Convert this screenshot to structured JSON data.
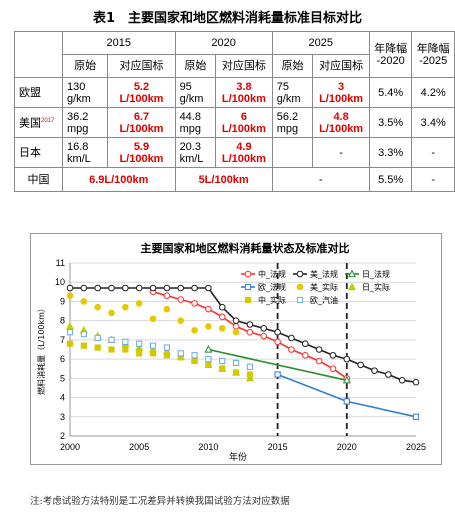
{
  "title": "表1　主要国家和地区燃料消耗量标准目标对比",
  "table": {
    "years": [
      "2015",
      "2020",
      "2025"
    ],
    "rate_headers": [
      "年降幅\n-2020",
      "年降幅\n-2025"
    ],
    "sub_headers": [
      "原始",
      "对应国标",
      "原始",
      "对应国标",
      "原始",
      "对应国标"
    ],
    "rows": [
      {
        "name": "欧盟",
        "sup": "",
        "cells": [
          [
            "130\ng/km",
            "5.2\nL/100km",
            "95\ng/km",
            "3.8\nL/100km",
            "75\ng/km",
            "3\nL/100km"
          ]
        ],
        "rates": [
          "5.4%",
          "4.2%"
        ]
      },
      {
        "name": "美国",
        "sup": "2017",
        "cells": [
          [
            "36.2\nmpg",
            "6.7\nL/100km",
            "44.8\nmpg",
            "6\nL/100km",
            "56.2\nmpg",
            "4.8\nL/100km"
          ]
        ],
        "rates": [
          "3.5%",
          "3.4%"
        ]
      },
      {
        "name": "日本",
        "sup": "",
        "cells": [
          [
            "16.8\nkm/L",
            "5.9\nL/100km",
            "20.3\nkm/L",
            "4.9\nL/100km",
            "",
            "-"
          ]
        ],
        "rates": [
          "3.3%",
          "-"
        ]
      },
      {
        "name": "中国",
        "sup": "",
        "merged": [
          "6.9L/100km",
          "5L/100km",
          "-"
        ],
        "rates": [
          "5.5%",
          "-"
        ]
      }
    ]
  },
  "chart_data": {
    "type": "line",
    "title": "主要国家和地区燃料消耗量状态及标准对比",
    "xlabel": "年份",
    "ylabel": "燃料消耗量（L/100km）",
    "xlim": [
      2000,
      2025
    ],
    "ylim": [
      2,
      11
    ],
    "xticks": [
      "2000",
      "2005",
      "2010",
      "2015",
      "2020",
      "2025"
    ],
    "yticks": [
      "2",
      "3",
      "4",
      "5",
      "6",
      "7",
      "8",
      "9",
      "10",
      "11"
    ],
    "vlines": [
      2015,
      2020
    ],
    "grid": true,
    "legend_position": "top-right",
    "series": [
      {
        "name": "中_法规",
        "color": "#ff3030",
        "marker": "circle-open",
        "line": true,
        "points": [
          [
            2006,
            9.5
          ],
          [
            2007,
            9.3
          ],
          [
            2008,
            9.1
          ],
          [
            2009,
            8.9
          ],
          [
            2010,
            8.6
          ],
          [
            2011,
            8.2
          ],
          [
            2012,
            7.7
          ],
          [
            2013,
            7.4
          ],
          [
            2014,
            7.2
          ],
          [
            2015,
            6.9
          ],
          [
            2016,
            6.5
          ],
          [
            2017,
            6.2
          ],
          [
            2018,
            5.9
          ],
          [
            2019,
            5.5
          ],
          [
            2020,
            5.0
          ]
        ]
      },
      {
        "name": "美_法规",
        "color": "#222222",
        "marker": "circle-open",
        "line": true,
        "points": [
          [
            2000,
            9.7
          ],
          [
            2001,
            9.7
          ],
          [
            2002,
            9.7
          ],
          [
            2003,
            9.7
          ],
          [
            2004,
            9.7
          ],
          [
            2005,
            9.7
          ],
          [
            2006,
            9.7
          ],
          [
            2007,
            9.7
          ],
          [
            2008,
            9.7
          ],
          [
            2009,
            9.7
          ],
          [
            2010,
            9.7
          ],
          [
            2011,
            8.7
          ],
          [
            2012,
            8.0
          ],
          [
            2013,
            7.8
          ],
          [
            2014,
            7.6
          ],
          [
            2015,
            7.4
          ],
          [
            2016,
            7.1
          ],
          [
            2017,
            6.8
          ],
          [
            2018,
            6.5
          ],
          [
            2019,
            6.2
          ],
          [
            2020,
            6.0
          ],
          [
            2021,
            5.7
          ],
          [
            2022,
            5.4
          ],
          [
            2023,
            5.2
          ],
          [
            2024,
            4.9
          ],
          [
            2025,
            4.8
          ]
        ]
      },
      {
        "name": "日_法规",
        "color": "#2e8b2e",
        "marker": "triangle-open",
        "line": true,
        "points": [
          [
            2010,
            6.5
          ],
          [
            2020,
            4.9
          ]
        ]
      },
      {
        "name": "欧_法规",
        "color": "#2f7fcf",
        "marker": "square-open",
        "line": true,
        "points": [
          [
            2015,
            5.2
          ],
          [
            2020,
            3.8
          ],
          [
            2025,
            3.0
          ]
        ]
      },
      {
        "name": "美_实际",
        "color": "#e6c800",
        "marker": "circle-filled",
        "line": false,
        "points": [
          [
            2000,
            9.3
          ],
          [
            2001,
            9.0
          ],
          [
            2002,
            8.7
          ],
          [
            2003,
            8.4
          ],
          [
            2004,
            8.7
          ],
          [
            2005,
            8.9
          ],
          [
            2006,
            8.1
          ],
          [
            2007,
            8.6
          ],
          [
            2008,
            8.0
          ],
          [
            2009,
            7.5
          ],
          [
            2010,
            7.7
          ],
          [
            2011,
            7.6
          ],
          [
            2012,
            7.4
          ]
        ]
      },
      {
        "name": "日_实际",
        "color": "#b8d200",
        "marker": "triangle-filled",
        "line": false,
        "points": [
          [
            2000,
            7.7
          ],
          [
            2001,
            7.5
          ],
          [
            2002,
            7.2
          ],
          [
            2003,
            7.0
          ],
          [
            2004,
            6.8
          ],
          [
            2005,
            6.6
          ],
          [
            2006,
            6.5
          ],
          [
            2007,
            6.4
          ],
          [
            2008,
            6.1
          ],
          [
            2009,
            6.0
          ],
          [
            2010,
            5.7
          ],
          [
            2011,
            5.5
          ],
          [
            2012,
            5.3
          ],
          [
            2013,
            5.0
          ]
        ]
      },
      {
        "name": "中_实际",
        "color": "#d4c800",
        "marker": "square-filled",
        "line": false,
        "points": [
          [
            2000,
            6.8
          ],
          [
            2001,
            6.7
          ],
          [
            2002,
            6.6
          ],
          [
            2003,
            6.5
          ],
          [
            2004,
            6.5
          ],
          [
            2005,
            6.3
          ],
          [
            2006,
            6.3
          ],
          [
            2007,
            6.2
          ],
          [
            2008,
            6.1
          ],
          [
            2009,
            5.9
          ],
          [
            2010,
            5.7
          ],
          [
            2011,
            5.5
          ],
          [
            2012,
            5.3
          ],
          [
            2013,
            5.2
          ]
        ]
      },
      {
        "name": "欧_汽油",
        "color": "#6aa8e6",
        "marker": "square-open",
        "line": false,
        "points": [
          [
            2000,
            7.4
          ],
          [
            2001,
            7.3
          ],
          [
            2002,
            7.1
          ],
          [
            2003,
            7.0
          ],
          [
            2004,
            6.9
          ],
          [
            2005,
            6.8
          ],
          [
            2006,
            6.7
          ],
          [
            2007,
            6.6
          ],
          [
            2008,
            6.3
          ],
          [
            2009,
            6.2
          ],
          [
            2010,
            6.0
          ],
          [
            2011,
            5.9
          ],
          [
            2012,
            5.8
          ],
          [
            2013,
            5.6
          ]
        ]
      }
    ]
  },
  "note": "注:考虑试验方法特别是工况差异并转换我国试验方法对应数据"
}
